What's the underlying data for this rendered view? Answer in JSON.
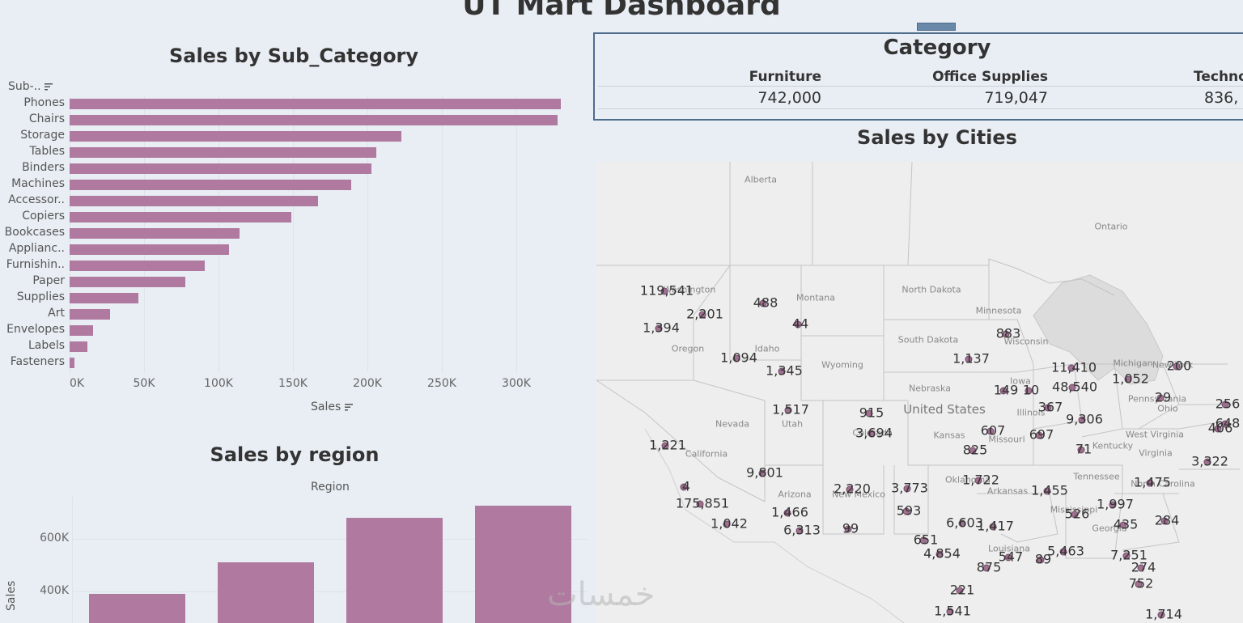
{
  "dashboard": {
    "title": "UT Mart Dashboard"
  },
  "subcat_chart": {
    "title": "Sales by Sub_Category",
    "header_label": "Sub-..",
    "xlabel": "Sales",
    "ticks": [
      "0K",
      "50K",
      "100K",
      "150K",
      "200K",
      "250K",
      "300K"
    ],
    "chart_data": {
      "type": "bar",
      "orientation": "horizontal",
      "categories": [
        "Phones",
        "Chairs",
        "Storage",
        "Tables",
        "Binders",
        "Machines",
        "Accessor..",
        "Copiers",
        "Bookcases",
        "Applianc..",
        "Furnishin..",
        "Paper",
        "Supplies",
        "Art",
        "Envelopes",
        "Labels",
        "Fasteners"
      ],
      "values": [
        330000,
        328000,
        223000,
        206000,
        203000,
        189000,
        167000,
        149000,
        114000,
        107000,
        91000,
        78000,
        46000,
        27000,
        16000,
        12000,
        3000
      ],
      "xlim": [
        0,
        340000
      ]
    }
  },
  "category_table": {
    "title": "Category",
    "columns": [
      {
        "name": "Furniture",
        "value": "742,000"
      },
      {
        "name": "Office Supplies",
        "value": "719,047"
      },
      {
        "name": "Techno",
        "value": "836,"
      }
    ]
  },
  "region_chart": {
    "title": "Sales by region",
    "header_label": "Region",
    "ylabel": "Sales",
    "ticks": [
      "600K",
      "400K"
    ],
    "chart_data": {
      "type": "bar",
      "categories": [
        "",
        "",
        "",
        ""
      ],
      "values": [
        392000,
        511000,
        679000,
        725000
      ],
      "ylim": [
        300000,
        800000
      ]
    }
  },
  "map": {
    "title": "Sales by Cities",
    "place_labels": [
      "Alberta",
      "Ontario",
      "Washington",
      "Montana",
      "North Dakota",
      "Minnesota",
      "Oregon",
      "Idaho",
      "South Dakota",
      "Wisconsin",
      "Michigan",
      "New York",
      "Wyoming",
      "Iowa",
      "Nebraska",
      "United States",
      "Pennsylvania",
      "Nevada",
      "Utah",
      "Colorado",
      "Illinois",
      "Ohio",
      "Kansas",
      "Missouri",
      "West Virginia",
      "Kentucky",
      "California",
      "Virginia",
      "Oklahoma",
      "Tennessee",
      "North Carolina",
      "Arizona",
      "New Mexico",
      "Arkansas",
      "Mississippi",
      "Georgia",
      "Louisiana"
    ],
    "city_values": [
      "119,541",
      "2,201",
      "488",
      "1,394",
      "44",
      "883",
      "1,094",
      "1,137",
      "11,410",
      "1,345",
      "1,052",
      "200",
      "149",
      "10",
      "48,540",
      "1,517",
      "915",
      "367",
      "9,306",
      "29",
      "256",
      "406",
      "648",
      "1,221",
      "3,694",
      "607",
      "697",
      "825",
      "71",
      "3,322",
      "9,801",
      "1,722",
      "4",
      "1,475",
      "1,997",
      "2,220",
      "3,773",
      "1,455",
      "175,851",
      "1,466",
      "526",
      "435",
      "593",
      "6,603",
      "284",
      "1,042",
      "1,417",
      "6,313",
      "99",
      "651",
      "5,463",
      "4,854",
      "547",
      "7,251",
      "89",
      "875",
      "274",
      "752",
      "221",
      "1,541",
      "1,714"
    ]
  },
  "watermark": {
    "text": "خمسات"
  }
}
